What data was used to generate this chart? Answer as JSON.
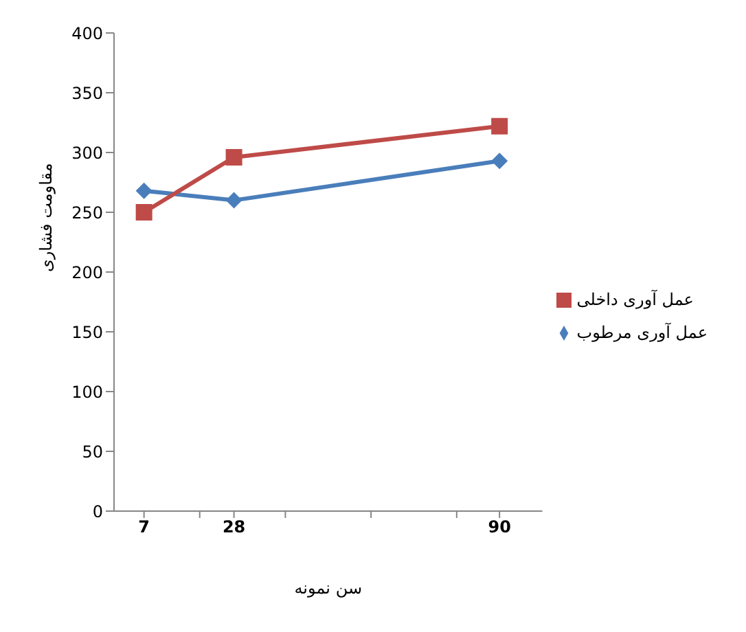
{
  "chart_data": {
    "type": "line",
    "xlabel": "سن نمونه",
    "ylabel": "مقاومت فشاری",
    "x": [
      7,
      28,
      90
    ],
    "series": [
      {
        "name": "عمل آوری مرطوب",
        "color": "#4a7ebb",
        "marker": "diamond",
        "values": [
          268,
          260,
          293
        ]
      },
      {
        "name": "عمل آوری داخلی",
        "color": "#be4b48",
        "marker": "square",
        "values": [
          250,
          296,
          322
        ]
      }
    ],
    "xlim": [
      0,
      100
    ],
    "xticks": [
      7,
      {
        "value": 20,
        "label": null
      },
      28,
      {
        "value": 40,
        "label": null
      },
      {
        "value": 60,
        "label": null
      },
      {
        "value": 80,
        "label": null
      },
      90
    ],
    "ylim": [
      0,
      400
    ],
    "yticks": [
      0,
      50,
      100,
      150,
      200,
      250,
      300,
      350,
      400
    ],
    "grid": false,
    "legend": "right",
    "line_style": "solid"
  }
}
